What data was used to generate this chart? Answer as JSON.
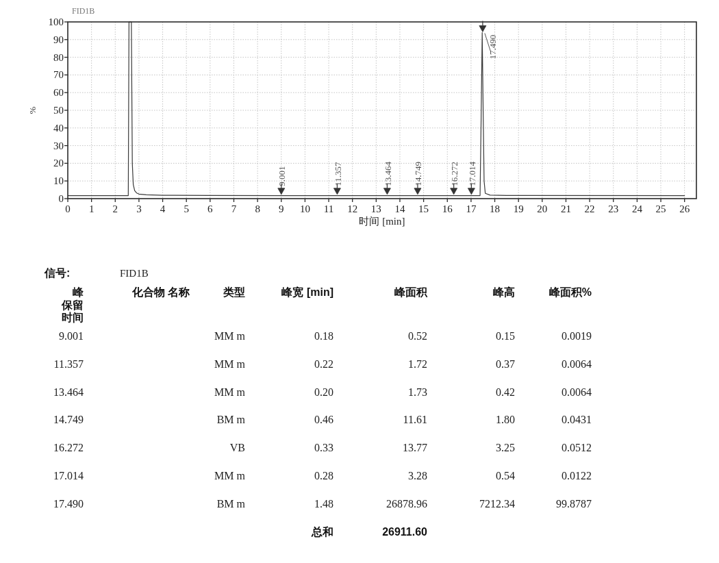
{
  "chart_data": [
    {
      "type": "line",
      "title": "FID1B",
      "xlabel": "时间 [min]",
      "ylabel": "%",
      "color": "#3a3a3a",
      "x": [
        0,
        2.55,
        2.58,
        2.68,
        2.72,
        2.76,
        2.82,
        2.9,
        3.0,
        3.3,
        4.0,
        6.0,
        9.0,
        17.38,
        17.42,
        17.47,
        17.52,
        17.55,
        17.6,
        17.8,
        18.5,
        26
      ],
      "values": [
        1.7,
        1.7,
        100,
        100,
        20,
        8,
        4.5,
        3.2,
        2.6,
        2.2,
        1.9,
        1.8,
        1.7,
        1.7,
        40,
        94,
        40,
        10,
        3,
        2,
        1.8,
        1.7
      ],
      "xlim": [
        0,
        26.5
      ],
      "xticks": [
        0,
        1,
        2,
        3,
        4,
        5,
        6,
        7,
        8,
        9,
        10,
        11,
        12,
        13,
        14,
        15,
        16,
        17,
        18,
        19,
        20,
        21,
        22,
        23,
        24,
        25,
        26
      ],
      "ylim": [
        0,
        100
      ],
      "yticks": [
        0,
        10,
        20,
        30,
        40,
        50,
        60,
        70,
        80,
        90,
        100
      ],
      "grid": true,
      "annotations": [
        {
          "text": "9.001",
          "x": 9.001,
          "y": 2
        },
        {
          "text": "11.357",
          "x": 11.357,
          "y": 2
        },
        {
          "text": "13.464",
          "x": 13.464,
          "y": 2
        },
        {
          "text": "14.749",
          "x": 14.749,
          "y": 2
        },
        {
          "text": "16.272",
          "x": 16.272,
          "y": 2
        },
        {
          "text": "17.014",
          "x": 17.014,
          "y": 2
        },
        {
          "text": "17.490",
          "x": 17.49,
          "y": 94
        }
      ]
    },
    {
      "type": "other",
      "annotations": [
        "信号:",
        "FID1B"
      ],
      "categories": [
        "峰保留时间",
        "化合物 名称",
        "类型",
        "峰宽 [min]",
        "峰面积",
        "峰高",
        "峰面积%"
      ],
      "cell_labels": [
        [
          "9.001",
          null,
          "MM m",
          "0.18",
          "0.52",
          "0.15",
          "0.0019"
        ],
        [
          "11.357",
          null,
          "MM m",
          "0.22",
          "1.72",
          "0.37",
          "0.0064"
        ],
        [
          "13.464",
          null,
          "MM m",
          "0.20",
          "1.73",
          "0.42",
          "0.0064"
        ],
        [
          "14.749",
          null,
          "BM m",
          "0.46",
          "11.61",
          "1.80",
          "0.0431"
        ],
        [
          "16.272",
          null,
          "VB",
          "0.33",
          "13.77",
          "3.25",
          "0.0512"
        ],
        [
          "17.014",
          null,
          "MM m",
          "0.28",
          "3.28",
          "0.54",
          "0.0122"
        ],
        [
          "17.490",
          null,
          "BM m",
          "1.48",
          "26878.96",
          "7212.34",
          "99.8787"
        ]
      ],
      "totals": [
        null,
        null,
        null,
        "总和",
        "26911.60",
        null,
        null
      ]
    }
  ]
}
